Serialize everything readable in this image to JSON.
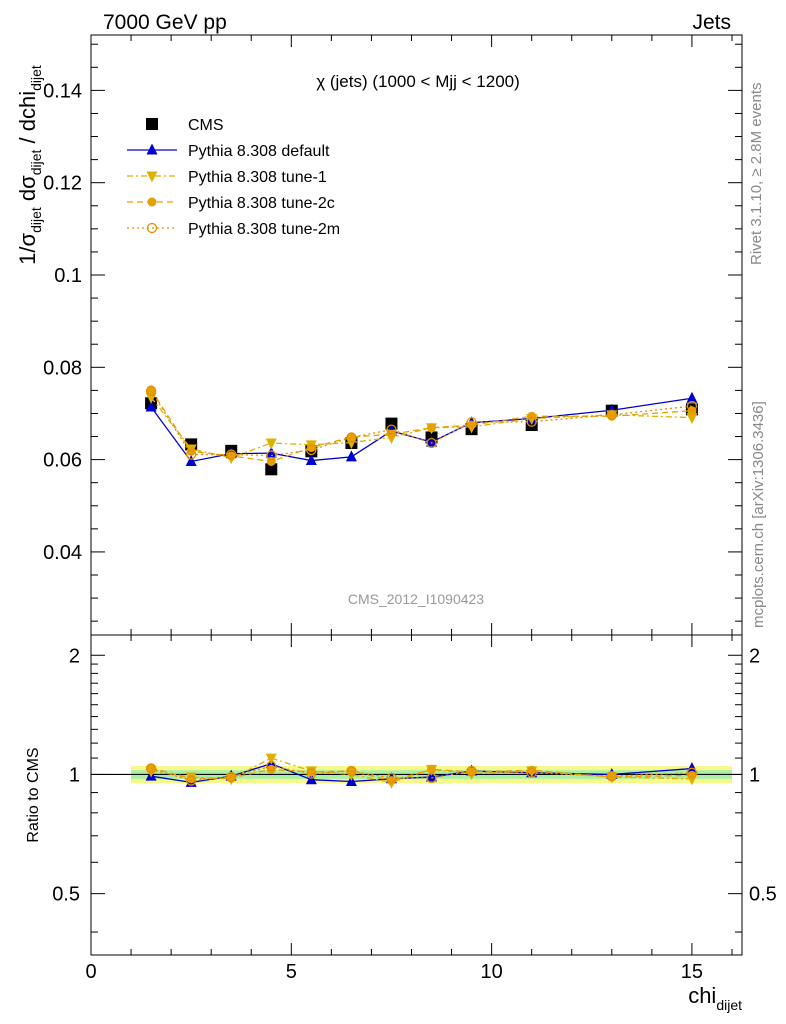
{
  "header": {
    "left": "7000 GeV pp",
    "right": "Jets"
  },
  "side_labels": {
    "rivet": "Rivet 3.1.10, ≥ 2.8M events",
    "mcplots": "mcplots.cern.ch [arXiv:1306.3436]"
  },
  "watermark": "CMS_2012_I1090423",
  "chart_data": [
    {
      "type": "scatter",
      "panel": "main",
      "title": "χ (jets) (1000 < Mjj < 1200)",
      "ylabel": "1/σ_dijet dσ_dijet / dchi_dijet",
      "ylabel_parts": {
        "a": "1/σ",
        "a_sub": "dijet",
        "b": " dσ",
        "b_sub": "dijet",
        "c": " / dchi",
        "c_sub": "dijet"
      },
      "xlim": [
        0,
        16.25
      ],
      "ylim": [
        0.022,
        0.152
      ],
      "y_ticks": [
        "0.04",
        "0.06",
        "0.08",
        "0.1",
        "0.12",
        "0.14"
      ],
      "x": [
        1.5,
        2.5,
        3.5,
        4.5,
        5.5,
        6.5,
        7.5,
        8.5,
        9.5,
        11,
        13,
        15
      ],
      "legend_position": "top-left",
      "series": [
        {
          "name": "CMS",
          "color": "#000000",
          "marker": "square",
          "line": "none",
          "values": [
            0.0722,
            0.0633,
            0.0619,
            0.0579,
            0.0618,
            0.0636,
            0.0678,
            0.0648,
            0.0666,
            0.0675,
            0.0706,
            0.0709
          ]
        },
        {
          "name": "Pythia 8.308 default",
          "color": "#0000cc",
          "marker": "triangle-up",
          "line": "solid",
          "values": [
            0.0714,
            0.0596,
            0.0613,
            0.0614,
            0.0598,
            0.0606,
            0.0662,
            0.0638,
            0.068,
            0.0689,
            0.0707,
            0.0733
          ]
        },
        {
          "name": "Pythia 8.308 tune-1",
          "color": "#e0b000",
          "marker": "triangle-down",
          "line": "dashdot",
          "values": [
            0.0735,
            0.0623,
            0.0604,
            0.0636,
            0.0632,
            0.0637,
            0.0648,
            0.0669,
            0.0671,
            0.0689,
            0.0697,
            0.0691
          ]
        },
        {
          "name": "Pythia 8.308 tune-2c",
          "color": "#e8a000",
          "marker": "circle",
          "line": "dashed",
          "values": [
            0.0751,
            0.0618,
            0.0608,
            0.0596,
            0.0626,
            0.0649,
            0.0655,
            0.0669,
            0.0675,
            0.0694,
            0.0694,
            0.0706
          ]
        },
        {
          "name": "Pythia 8.308 tune-2m",
          "color": "#e09000",
          "marker": "open-circle",
          "line": "dotted",
          "values": [
            0.0749,
            0.0611,
            0.0611,
            0.0609,
            0.0621,
            0.0648,
            0.0665,
            0.0636,
            0.0681,
            0.0682,
            0.0697,
            0.0716
          ]
        }
      ]
    },
    {
      "type": "scatter",
      "panel": "ratio",
      "xlabel": "chi_dijet",
      "xlabel_parts": {
        "a": "chi",
        "a_sub": "dijet"
      },
      "ylabel": "Ratio to CMS",
      "xlim": [
        0,
        16.25
      ],
      "ylim": [
        0.35,
        2.25
      ],
      "x_ticks": [
        "0",
        "5",
        "10",
        "15"
      ],
      "y_ticks": [
        "0.5",
        "1",
        "2"
      ],
      "x": [
        1.5,
        2.5,
        3.5,
        4.5,
        5.5,
        6.5,
        7.5,
        8.5,
        9.5,
        11,
        13,
        15
      ],
      "band_inner": [
        0.975,
        1.025
      ],
      "band_outer": [
        0.95,
        1.05
      ],
      "band_range_x": [
        1,
        16
      ],
      "series": [
        {
          "name": "Pythia 8.308 default",
          "color": "#0000cc",
          "marker": "triangle-up",
          "line": "solid",
          "values": [
            0.99,
            0.955,
            0.99,
            1.065,
            0.97,
            0.96,
            0.975,
            0.985,
            1.02,
            1.01,
            1.0,
            1.035
          ]
        },
        {
          "name": "Pythia 8.308 tune-1",
          "color": "#e0b000",
          "marker": "triangle-down",
          "line": "dashdot",
          "values": [
            1.02,
            0.985,
            0.975,
            1.1,
            1.02,
            1.0,
            0.955,
            1.03,
            1.005,
            1.02,
            0.985,
            0.975
          ]
        },
        {
          "name": "Pythia 8.308 tune-2c",
          "color": "#e8a000",
          "marker": "circle",
          "line": "dashed",
          "values": [
            1.04,
            0.975,
            0.98,
            1.03,
            1.015,
            1.02,
            0.965,
            1.03,
            1.015,
            1.025,
            0.985,
            0.995
          ]
        },
        {
          "name": "Pythia 8.308 tune-2m",
          "color": "#e09000",
          "marker": "open-circle",
          "line": "dotted",
          "values": [
            1.035,
            0.965,
            0.985,
            1.05,
            1.005,
            1.02,
            0.98,
            0.98,
            1.02,
            1.01,
            0.99,
            1.01
          ]
        }
      ]
    }
  ]
}
